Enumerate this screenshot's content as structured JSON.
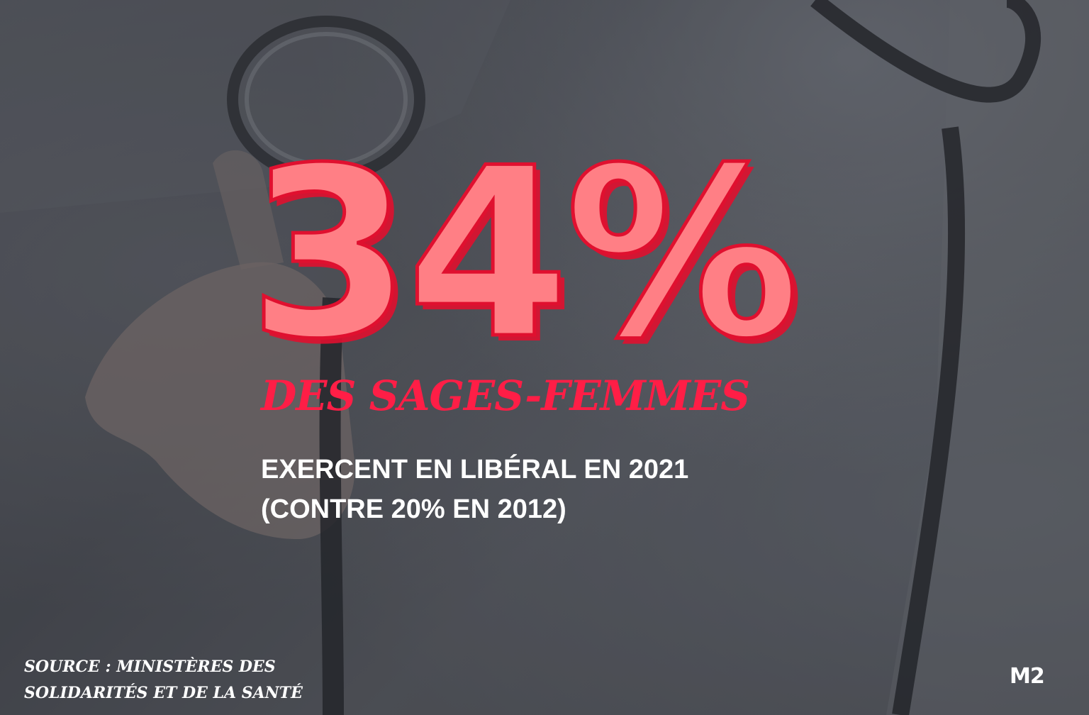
{
  "stat": {
    "value": "34%",
    "fill_color": "#ff7f85",
    "outline_color": "#e0102f"
  },
  "headline": "DES SAGES-FEMMES",
  "description": {
    "line1": "EXERCENT EN LIBÉRAL EN 2021",
    "line2": "(CONTRE 20% EN 2012)"
  },
  "source": {
    "line1": "SOURCE : MINISTÈRES DES",
    "line2": "SOLIDARITÉS ET DE LA SANTÉ"
  },
  "logo": {
    "text": "M2"
  },
  "background": {
    "icon": "stethoscope-photo"
  },
  "colors": {
    "accent_red": "#ff1e46",
    "text_white": "#ffffff",
    "overlay_dark": "#4a4c52"
  }
}
